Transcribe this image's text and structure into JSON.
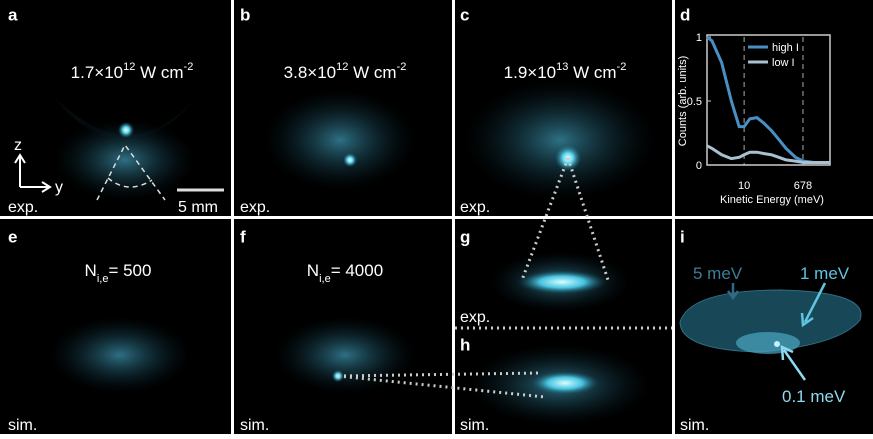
{
  "panels": [
    {
      "letter": "a",
      "tag": "exp."
    },
    {
      "letter": "b",
      "tag": "exp."
    },
    {
      "letter": "c",
      "tag": "exp."
    },
    {
      "letter": "d"
    },
    {
      "letter": "e",
      "tag": "sim."
    },
    {
      "letter": "f",
      "tag": "sim."
    },
    {
      "letter": "g",
      "tag": "exp."
    },
    {
      "letter": "h",
      "tag": "sim."
    },
    {
      "letter": "i",
      "tag": "sim."
    }
  ],
  "intensities": [
    {
      "base": "1.7×10",
      "exp": "12",
      "unit": " W cm",
      "unit_exp": "-2"
    },
    {
      "base": "3.8×10",
      "exp": "12",
      "unit": " W cm",
      "unit_exp": "-2"
    },
    {
      "base": "1.9×10",
      "exp": "13",
      "unit": " W cm",
      "unit_exp": "-2"
    }
  ],
  "counts": [
    {
      "symbol": "N",
      "subscript": "i,e",
      "text": "= 500"
    },
    {
      "symbol": "N",
      "subscript": "i,e",
      "text": "= 4000"
    }
  ],
  "axes": {
    "z": "z",
    "y": "y"
  },
  "scale_bar": "5 mm",
  "energy_labels": [
    "5 meV",
    "1 meV",
    "0.1 meV"
  ],
  "chart_data": {
    "type": "line",
    "xlabel": "Kinetic Energy (meV)",
    "ylabel": "Counts  (arb. units)",
    "xlog": true,
    "xlim": [
      0.7,
      4700
    ],
    "ylim": [
      0,
      1
    ],
    "xticks": [
      10,
      678
    ],
    "yticks": [
      0,
      0.5,
      1
    ],
    "xgrid": true,
    "legend": "upper right",
    "x": [
      0.7,
      1,
      2,
      4,
      7,
      10,
      15,
      25,
      40,
      70,
      120,
      200,
      400,
      700,
      1500,
      4700
    ],
    "series": [
      {
        "name": "high I",
        "color": "#4a8fc4",
        "values": [
          1,
          0.97,
          0.8,
          0.5,
          0.3,
          0.3,
          0.36,
          0.37,
          0.33,
          0.27,
          0.2,
          0.13,
          0.06,
          0.03,
          0.02,
          0.02
        ]
      },
      {
        "name": "low I",
        "color": "#a9c1cf",
        "values": [
          0.15,
          0.13,
          0.08,
          0.05,
          0.06,
          0.08,
          0.1,
          0.1,
          0.09,
          0.08,
          0.06,
          0.04,
          0.03,
          0.02,
          0.02,
          0.02
        ]
      }
    ]
  }
}
